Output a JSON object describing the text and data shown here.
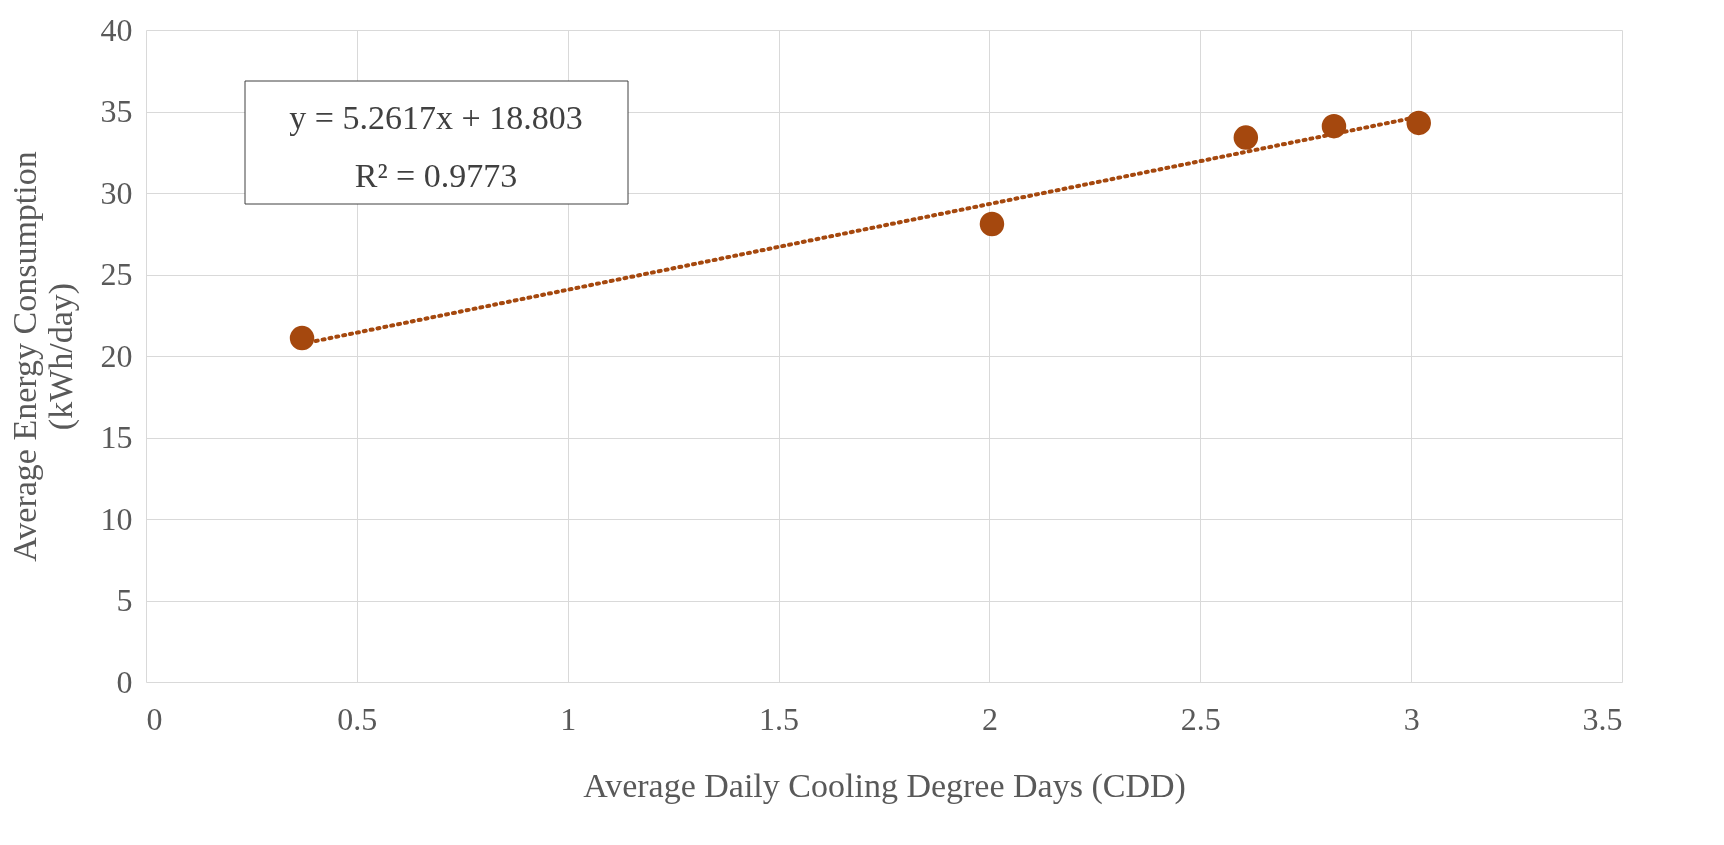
{
  "chart_data": {
    "type": "scatter",
    "xlabel": "Average Daily Cooling Degree Days (CDD)",
    "ylabel": [
      "Average Energy Consumption",
      "(kWh/day)"
    ],
    "xlim": [
      0,
      3.5
    ],
    "xticks": [
      0,
      0.5,
      1,
      1.5,
      2,
      2.5,
      3,
      3.5
    ],
    "ylim": [
      0,
      40
    ],
    "yticks": [
      0,
      5,
      10,
      15,
      20,
      25,
      30,
      35,
      40
    ],
    "grid": true,
    "series": [
      {
        "color": "#a5480e",
        "marker": "circle",
        "x": [
          0.37,
          2.006,
          2.608,
          2.817,
          3.018
        ],
        "values": [
          21.1,
          28.1,
          33.4,
          34.1,
          34.3
        ]
      },
      {
        "type": "line",
        "color": "#a5480e",
        "marker": "none",
        "line_style": "dotted",
        "x": [
          0.37,
          3.02
        ],
        "values": [
          20.75,
          34.69
        ]
      }
    ],
    "annotations": [
      "y = 5.2617x + 18.803",
      "R² = 0.9773"
    ]
  }
}
